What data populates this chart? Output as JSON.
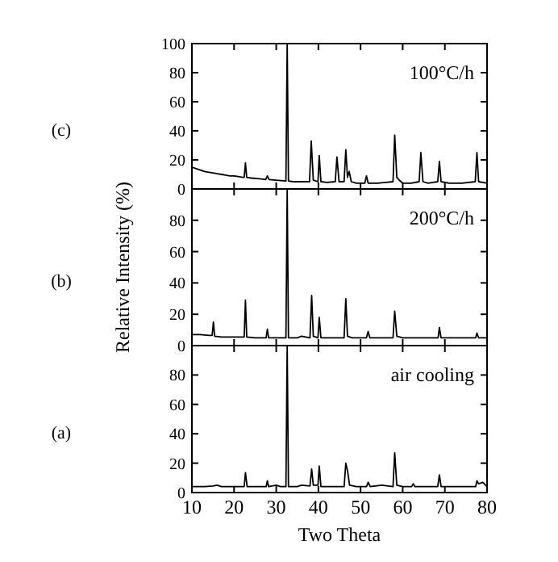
{
  "chart_data": [
    {
      "type": "line",
      "annotations": [
        "(c)",
        "100°C/h"
      ],
      "xlim": [
        10,
        80
      ],
      "xticks": [
        10,
        20,
        30,
        40,
        50,
        60,
        70,
        80
      ],
      "ylim": [
        0,
        100
      ],
      "yticks": [
        0,
        20,
        40,
        60,
        80,
        100
      ],
      "tick_labels": "y",
      "grid": false,
      "series": [
        {
          "color": "#000000",
          "x": [
            10,
            11,
            12,
            13,
            14,
            15,
            16,
            17,
            18,
            19,
            20,
            21,
            22,
            22.4,
            22.7,
            23,
            24,
            26,
            27.5,
            27.9,
            28.3,
            30,
            32.3,
            32.6,
            32.9,
            34,
            36,
            37.9,
            38.3,
            38.8,
            39.9,
            40.2,
            40.6,
            42,
            44,
            44.4,
            44.9,
            46.1,
            46.5,
            46.9,
            47.3,
            47.8,
            49,
            51,
            51.4,
            51.8,
            54,
            56,
            57.7,
            58.1,
            58.6,
            59.2,
            60,
            62,
            63.9,
            64.3,
            64.8,
            66,
            68.3,
            68.7,
            69.1,
            71,
            74,
            77.2,
            77.6,
            78,
            80
          ],
          "values": [
            15,
            14,
            13,
            12,
            11.5,
            11,
            10.5,
            10,
            9.5,
            9,
            9,
            8.5,
            8,
            8,
            18,
            8,
            7.5,
            7,
            6.5,
            9,
            6.5,
            6,
            5.5,
            100,
            5.5,
            5,
            5,
            5,
            33,
            6,
            5,
            23,
            5,
            4.5,
            5,
            22,
            5,
            5,
            27,
            8,
            12,
            5,
            4,
            4,
            9,
            4,
            4,
            4.5,
            5,
            37,
            8,
            6,
            4,
            4,
            5,
            25,
            5,
            4,
            5,
            19,
            5,
            4,
            4,
            5,
            25,
            5,
            4
          ]
        }
      ]
    },
    {
      "type": "line",
      "annotations": [
        "(b)",
        "200°C/h"
      ],
      "ylabel": "Relative Intensity (%)",
      "xlim": [
        10,
        80
      ],
      "xticks": [
        10,
        20,
        30,
        40,
        50,
        60,
        70,
        80
      ],
      "ylim": [
        0,
        100
      ],
      "yticks": [
        0,
        20,
        40,
        60,
        80,
        {
          "value": 100,
          "label": null
        }
      ],
      "tick_labels": "y",
      "grid": false,
      "series": [
        {
          "color": "#000000",
          "x": [
            10,
            12,
            14,
            14.8,
            15.1,
            15.4,
            17,
            20,
            22.4,
            22.7,
            23,
            25,
            27.6,
            27.9,
            28.2,
            30,
            32.3,
            32.6,
            32.9,
            35,
            36,
            38,
            38.4,
            38.8,
            39.9,
            40.2,
            40.6,
            43,
            46.1,
            46.5,
            46.9,
            48,
            51.4,
            51.8,
            52.2,
            54,
            57.7,
            58.1,
            58.6,
            60,
            63,
            65,
            68.4,
            68.7,
            69.1,
            72,
            77.3,
            77.6,
            78,
            80
          ],
          "values": [
            7,
            7,
            6.5,
            6.5,
            15,
            6,
            5.5,
            5.5,
            5.5,
            29,
            5.5,
            5,
            5,
            10.5,
            5,
            5,
            5,
            100,
            5,
            5,
            6,
            5,
            32,
            6,
            5,
            18,
            5,
            5,
            5,
            30,
            6,
            5,
            5,
            9,
            5,
            5,
            5,
            22,
            6,
            5,
            5,
            5,
            5,
            11.5,
            5,
            5,
            5,
            8,
            5,
            5
          ]
        }
      ]
    },
    {
      "type": "line",
      "annotations": [
        "(a)",
        "air cooling"
      ],
      "xlabel": "Two Theta",
      "xlim": [
        10,
        80
      ],
      "xticks": [
        10,
        20,
        30,
        40,
        50,
        60,
        70,
        80
      ],
      "ylim": [
        0,
        100
      ],
      "yticks": [
        0,
        20,
        40,
        60,
        80,
        {
          "value": 100,
          "label": null
        }
      ],
      "grid": false,
      "series": [
        {
          "color": "#000000",
          "x": [
            10,
            13,
            15,
            16,
            17,
            20,
            22.4,
            22.7,
            23.1,
            25,
            27.6,
            27.9,
            28.2,
            30,
            31,
            32.3,
            32.6,
            32.9,
            35,
            36,
            38,
            38.4,
            38.8,
            39.9,
            40.2,
            40.6,
            43,
            46.1,
            46.5,
            46.9,
            47.4,
            49,
            51.4,
            51.8,
            52.3,
            55,
            57.7,
            58.1,
            58.6,
            60,
            62.1,
            62.5,
            62.9,
            66,
            68.3,
            68.7,
            69.1,
            72,
            75,
            77.3,
            77.6,
            78,
            79,
            80
          ],
          "values": [
            4,
            4,
            4.5,
            5,
            4,
            4,
            4,
            13.5,
            4,
            4,
            4,
            8,
            4,
            5,
            4,
            4,
            100,
            4,
            4,
            5,
            4.5,
            16,
            5,
            5,
            18,
            4,
            4,
            4,
            20,
            15,
            5,
            4,
            4,
            7,
            4,
            5,
            4,
            27,
            5,
            4,
            4,
            6,
            4,
            4,
            4,
            12,
            4,
            4,
            4,
            4,
            8,
            6,
            7,
            4
          ]
        }
      ]
    }
  ]
}
